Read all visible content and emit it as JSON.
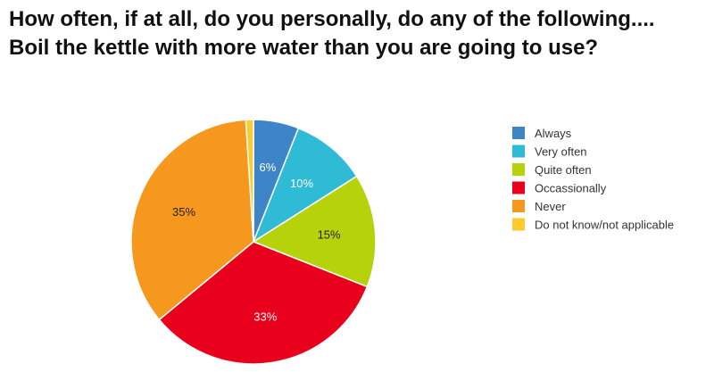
{
  "chart_data": {
    "type": "pie",
    "title": "How often, if at all, do you personally, do any of the following.... Boil the kettle with more water than you are going to use?",
    "categories": [
      "Always",
      "Very often",
      "Quite often",
      "Occassionally",
      "Never",
      "Do not know/not applicable"
    ],
    "values": [
      6,
      10,
      15,
      33,
      35,
      1
    ],
    "data_labels": [
      "6%",
      "10%",
      "15%",
      "33%",
      "35%",
      ""
    ],
    "colors": [
      "#3d85c6",
      "#2fbbd6",
      "#b5d20b",
      "#e8001c",
      "#f5981d",
      "#fecb2f"
    ],
    "legend_position": "right"
  }
}
